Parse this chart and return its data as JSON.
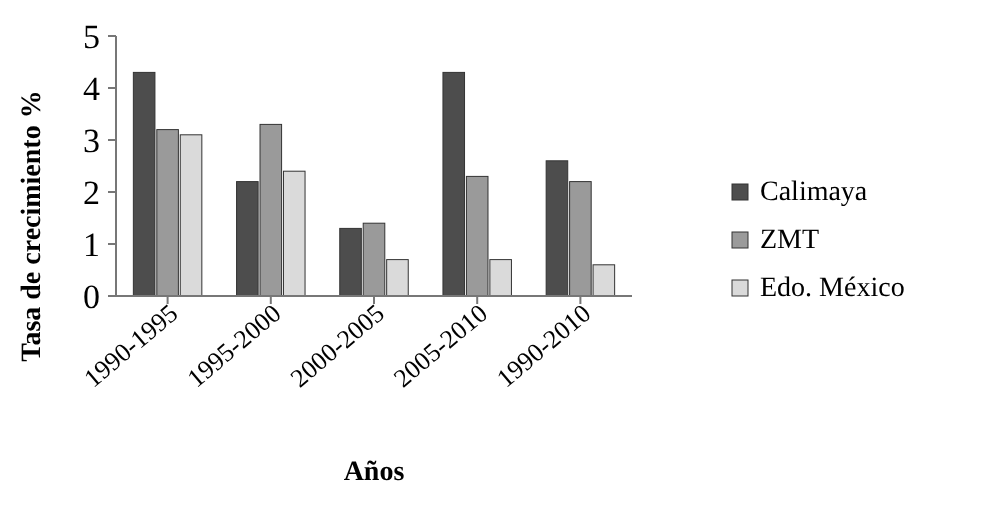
{
  "chart_data": {
    "type": "bar",
    "xlabel": "Años",
    "ylabel": "Tasa de crecimiento %",
    "categories": [
      "1990-1995",
      "1995-2000",
      "2000-2005",
      "2005-2010",
      "1990-2010"
    ],
    "series": [
      {
        "name": "Calimaya",
        "color": "#4d4d4d",
        "values": [
          4.3,
          2.2,
          1.3,
          4.3,
          2.6
        ]
      },
      {
        "name": "ZMT",
        "color": "#9a9a9a",
        "values": [
          3.2,
          3.3,
          1.4,
          2.3,
          2.2
        ]
      },
      {
        "name": "Edo. México",
        "color": "#dadada",
        "values": [
          3.1,
          2.4,
          0.7,
          0.7,
          0.6
        ]
      }
    ],
    "ylim": [
      0,
      5
    ],
    "yticks": [
      0,
      1,
      2,
      3,
      4,
      5
    ],
    "legend": "right"
  }
}
